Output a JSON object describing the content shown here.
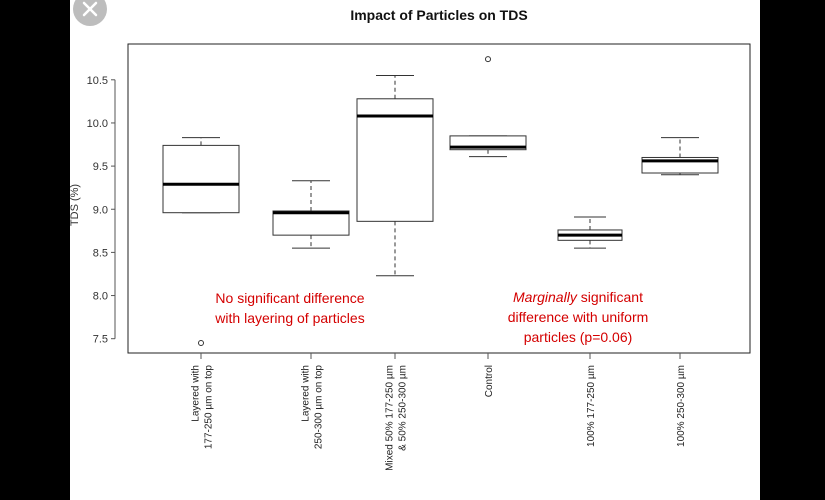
{
  "chart_data": {
    "type": "box",
    "title": "Impact of Particles on TDS",
    "ylabel": "TDS (%)",
    "xlabel": "",
    "ylim": [
      7.4,
      10.9
    ],
    "yticks": [
      "7.5",
      "8.0",
      "8.5",
      "9.0",
      "9.5",
      "10.0",
      "10.5"
    ],
    "grid": false,
    "categories": [
      [
        "Layered with",
        "177-250 µm on top"
      ],
      [
        "Layered with",
        "250-300 µm on top"
      ],
      [
        "Mixed 50% 177-250 µm",
        "& 50% 250-300 µm"
      ],
      [
        "Control"
      ],
      [
        "100% 177-250 µm"
      ],
      [
        "100% 250-300 µm"
      ]
    ],
    "boxes": [
      {
        "whisker_low": 8.96,
        "q1": 8.96,
        "median": 9.29,
        "q3": 9.74,
        "whisker_high": 9.83,
        "outliers": [
          7.45
        ]
      },
      {
        "whisker_low": 8.55,
        "q1": 8.7,
        "median": 8.96,
        "q3": 8.98,
        "whisker_high": 9.33,
        "outliers": []
      },
      {
        "whisker_low": 8.23,
        "q1": 8.86,
        "median": 10.08,
        "q3": 10.28,
        "whisker_high": 10.55,
        "outliers": []
      },
      {
        "whisker_low": 9.61,
        "q1": 9.69,
        "median": 9.72,
        "q3": 9.85,
        "whisker_high": 9.85,
        "outliers": [
          10.74
        ]
      },
      {
        "whisker_low": 8.55,
        "q1": 8.64,
        "median": 8.7,
        "q3": 8.76,
        "whisker_high": 8.91,
        "outliers": []
      },
      {
        "whisker_low": 9.4,
        "q1": 9.42,
        "median": 9.56,
        "q3": 9.6,
        "whisker_high": 9.83,
        "outliers": []
      }
    ],
    "annotations": [
      {
        "lines": [
          [
            {
              "text": "No significant difference",
              "italic": false
            }
          ],
          [
            {
              "text": "with layering of particles",
              "italic": false
            }
          ]
        ],
        "color": "#d40000"
      },
      {
        "lines": [
          [
            {
              "text": "Marginally",
              "italic": true
            },
            {
              "text": " significant",
              "italic": false
            }
          ],
          [
            {
              "text": "difference with uniform",
              "italic": false
            }
          ],
          [
            {
              "text": "particles (p=0.06)",
              "italic": false
            }
          ]
        ],
        "color": "#d40000"
      }
    ]
  },
  "colors": {
    "background": "#000000",
    "panel": "#ffffff",
    "annotation": "#d40000"
  },
  "window": {
    "close_icon": "close-icon"
  }
}
